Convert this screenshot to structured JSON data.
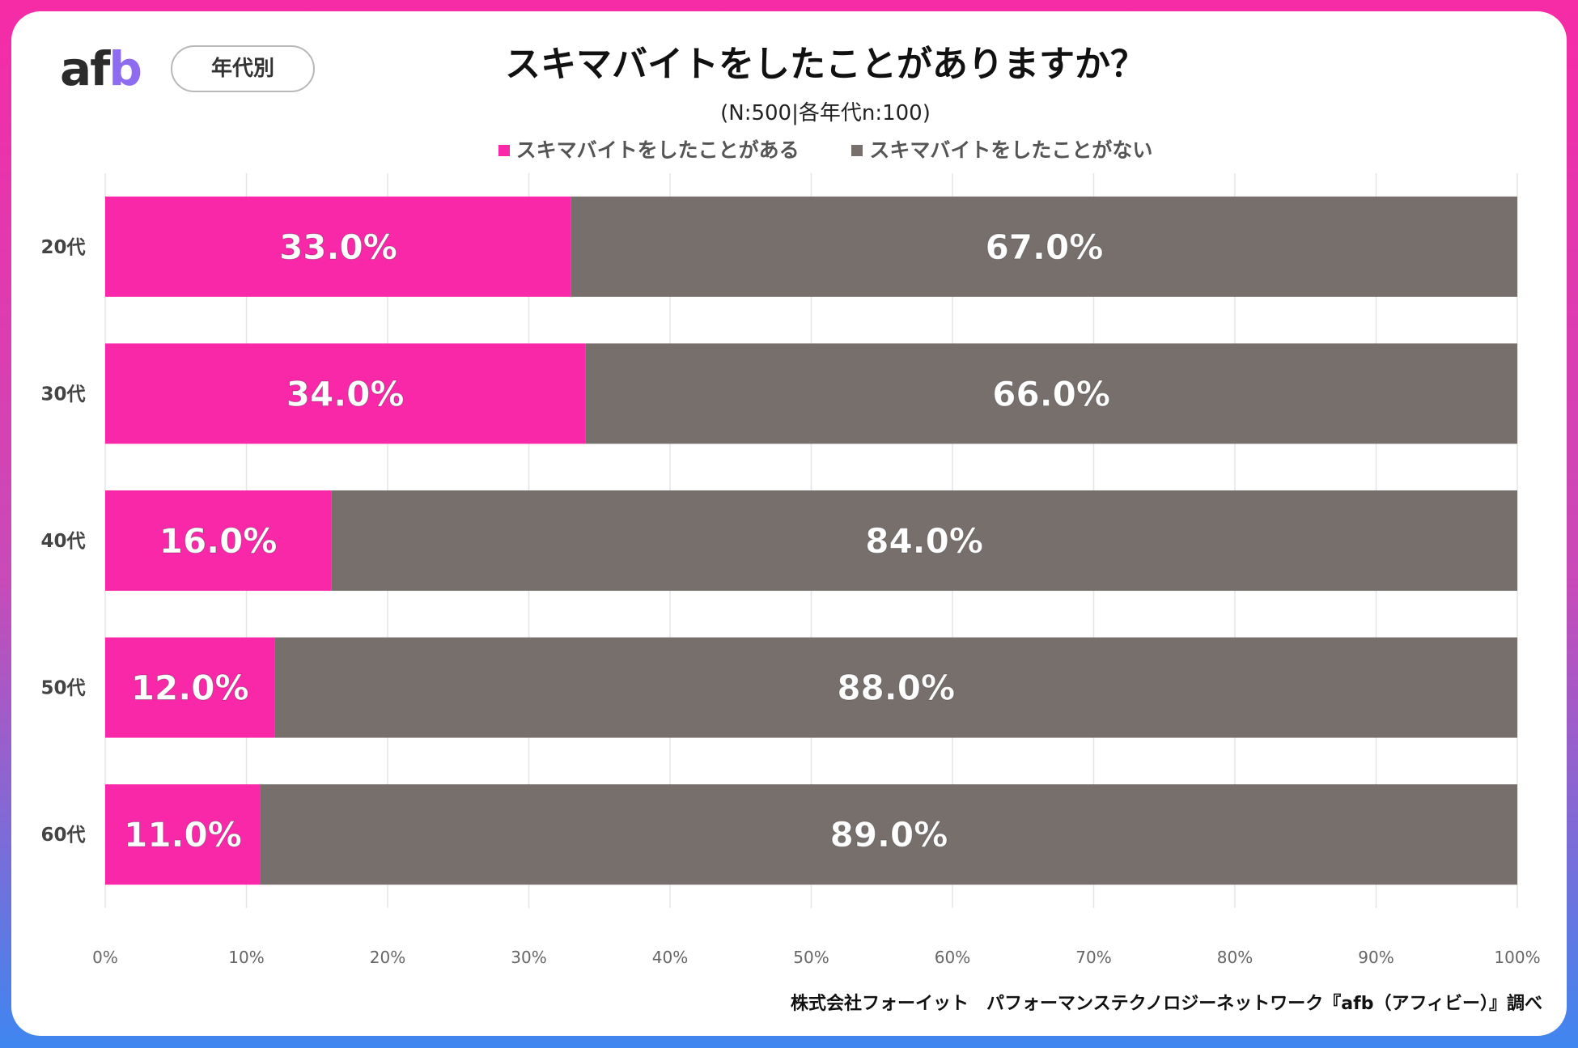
{
  "brand": {
    "logo_a": "a",
    "logo_f": "f",
    "logo_b": "b",
    "badge": "年代別"
  },
  "header": {
    "title": "スキマバイトをしたことがありますか？",
    "subtitle": "(N:500|各年代n:100)"
  },
  "footer": {
    "source": "株式会社フォーイット　パフォーマンステクノロジーネットワーク『afb（アフィビー）』調べ"
  },
  "colors": {
    "yes": "#f928a8",
    "no": "#776f6c",
    "grid": "#e6e6e6"
  },
  "chart_data": {
    "type": "bar",
    "orientation": "horizontal",
    "stacked": true,
    "title": "スキマバイトをしたことがありますか？",
    "categories": [
      "20代",
      "30代",
      "40代",
      "50代",
      "60代"
    ],
    "series": [
      {
        "name": "スキマバイトをしたことがある",
        "values": [
          33.0,
          34.0,
          16.0,
          12.0,
          11.0
        ],
        "labels": [
          "33.0%",
          "34.0%",
          "16.0%",
          "12.0%",
          "11.0%"
        ]
      },
      {
        "name": "スキマバイトをしたことがない",
        "values": [
          67.0,
          66.0,
          84.0,
          88.0,
          89.0
        ],
        "labels": [
          "67.0%",
          "66.0%",
          "84.0%",
          "88.0%",
          "89.0%"
        ]
      }
    ],
    "xlim": [
      0,
      100
    ],
    "xticks": [
      "0%",
      "10%",
      "20%",
      "30%",
      "40%",
      "50%",
      "60%",
      "70%",
      "80%",
      "90%",
      "100%"
    ],
    "grid": true,
    "legend": "top"
  }
}
